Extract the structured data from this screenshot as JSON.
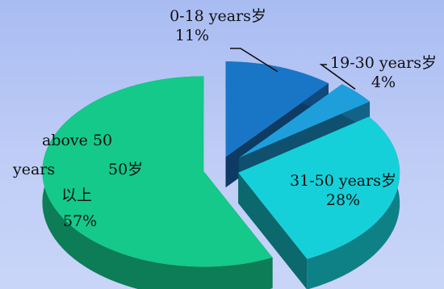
{
  "chart_data": {
    "type": "pie",
    "title": "",
    "categories": [
      "0-18 years岁",
      "19-30 years岁",
      "31-50 years岁",
      "above 50 years 50岁以上"
    ],
    "values": [
      11,
      4,
      28,
      57
    ],
    "value_labels": [
      "11%",
      "4%",
      "28%",
      "57%"
    ],
    "label_parts": {
      "s3": [
        "above 50",
        "years",
        "50岁",
        "以上",
        "57%"
      ]
    },
    "colors": {
      "s0": "#1976c7",
      "s1": "#1e9fdc",
      "s2": "#16d0d9",
      "s3": "#14c98a",
      "background": "#b8c8f4"
    },
    "style": "3d-exploded",
    "legend": "none"
  }
}
